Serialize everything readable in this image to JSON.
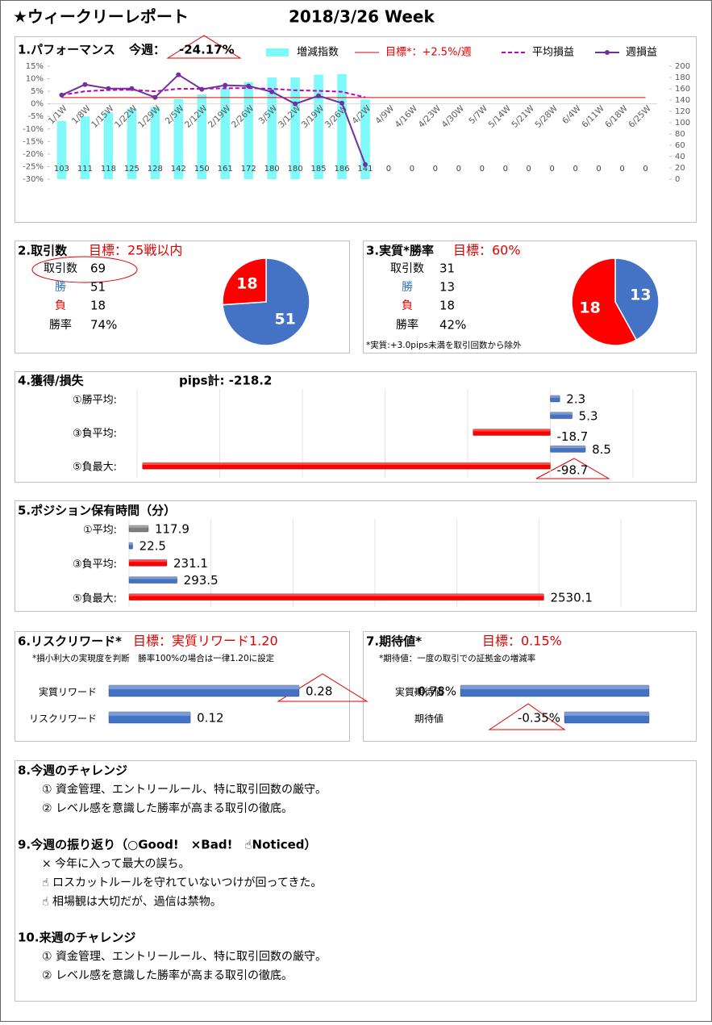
{
  "title": "★ウィークリーレポート",
  "week": "2018/3/26 Week",
  "chart_data": [
    {
      "type": "combo",
      "title": "1.パフォーマンス",
      "subtitle": "今週：",
      "annotation": "-24.17%",
      "categories": [
        "1/1W",
        "1/8W",
        "1/15W",
        "1/22W",
        "1/29W",
        "2/5W",
        "2/12W",
        "2/19W",
        "2/26W",
        "3/5W",
        "3/12W",
        "3/19W",
        "3/26W",
        "4/2W",
        "4/9W",
        "4/16W",
        "4/23W",
        "4/30W",
        "5/7W",
        "5/14W",
        "5/21W",
        "5/28W",
        "6/4W",
        "6/11W",
        "6/18W",
        "6/25W"
      ],
      "series": [
        {
          "name": "増減指数",
          "type": "bar",
          "axis": "y2",
          "color": "#7ff9f9",
          "values": [
            103,
            111,
            118,
            125,
            128,
            142,
            150,
            161,
            172,
            180,
            180,
            185,
            186,
            141,
            0,
            0,
            0,
            0,
            0,
            0,
            0,
            0,
            0,
            0,
            0,
            0
          ]
        },
        {
          "name": "目標*：+2.5%/週",
          "type": "line",
          "color": "#e00000",
          "style": "solid",
          "values": [
            2.5,
            2.5,
            2.5,
            2.5,
            2.5,
            2.5,
            2.5,
            2.5,
            2.5,
            2.5,
            2.5,
            2.5,
            2.5,
            2.5,
            2.5,
            2.5,
            2.5,
            2.5,
            2.5,
            2.5,
            2.5,
            2.5,
            2.5,
            2.5,
            2.5,
            2.5
          ]
        },
        {
          "name": "平均損益",
          "type": "line",
          "color": "#c000c0",
          "style": "dashed",
          "values": [
            3.5,
            5.0,
            5.5,
            5.6,
            5.0,
            6.0,
            6.0,
            6.2,
            6.3,
            6.0,
            5.4,
            5.2,
            4.8,
            2.6,
            null,
            null,
            null,
            null,
            null,
            null,
            null,
            null,
            null,
            null,
            null,
            null
          ]
        },
        {
          "name": "週損益",
          "type": "line",
          "color": "#7030a0",
          "style": "marker",
          "values": [
            3.5,
            7.7,
            6.1,
            6.1,
            2.6,
            11.6,
            5.8,
            7.4,
            7.1,
            4.8,
            0.0,
            3.2,
            0.3,
            -24.17,
            null,
            null,
            null,
            null,
            null,
            null,
            null,
            null,
            null,
            null,
            null,
            null
          ]
        }
      ],
      "ylim": [
        -30,
        15
      ],
      "yticks": [
        {
          "value": 15,
          "label": "15%"
        },
        {
          "value": 10,
          "label": "10%"
        },
        {
          "value": 5,
          "label": "5%"
        },
        {
          "value": 0,
          "label": "0%"
        },
        {
          "value": -5,
          "label": "-5%"
        },
        {
          "value": -10,
          "label": "-10%"
        },
        {
          "value": -15,
          "label": "-15%"
        },
        {
          "value": -20,
          "label": "-20%"
        },
        {
          "value": -25,
          "label": "-25%"
        },
        {
          "value": -30,
          "label": "-30%"
        }
      ],
      "y2lim": [
        0,
        200
      ],
      "y2ticks": [
        200,
        180,
        160,
        140,
        120,
        100,
        80,
        60,
        40,
        20,
        0
      ]
    },
    {
      "type": "pie",
      "title": "2.取引数",
      "target": "目標：25戦以内",
      "table": [
        [
          "取引数",
          "69"
        ],
        [
          "勝",
          "51"
        ],
        [
          "負",
          "18"
        ],
        [
          "勝率",
          "74%"
        ]
      ],
      "values": [
        51,
        18
      ],
      "colors": [
        "#4472c4",
        "#ff0000"
      ]
    },
    {
      "type": "pie",
      "title": "3.実質*勝率",
      "target": "目標：60%",
      "note": "*実質:+3.0pips未満を取引回数から除外",
      "table": [
        [
          "取引数",
          "31"
        ],
        [
          "勝",
          "13"
        ],
        [
          "負",
          "18"
        ],
        [
          "勝率",
          "42%"
        ]
      ],
      "values": [
        13,
        18
      ],
      "colors": [
        "#4472c4",
        "#ff0000"
      ]
    },
    {
      "type": "hbar",
      "title": "4.獲得/損失",
      "subtitle": "pips計: -218.2",
      "categories": [
        "①勝平均:",
        null,
        "③負平均:",
        null,
        "⑤負最大:"
      ],
      "values": [
        2.3,
        5.3,
        -18.7,
        8.5,
        -98.7
      ],
      "colors": [
        "#4472c4",
        "#4472c4",
        "#ff0000",
        "#4472c4",
        "#ff0000"
      ],
      "xlim": [
        -100,
        20
      ],
      "xticks": [
        -100,
        -80,
        -60,
        -40,
        -20,
        0,
        20
      ]
    },
    {
      "type": "hbar",
      "title": "5.ポジション保有時間（分）",
      "categories": [
        "①平均:",
        null,
        "③負平均:",
        null,
        "⑤負最大:"
      ],
      "values": [
        117.9,
        22.5,
        231.1,
        293.5,
        2530.1
      ],
      "colors": [
        "#7f7f7f",
        "#4472c4",
        "#ff0000",
        "#4472c4",
        "#ff0000"
      ],
      "xlim": [
        0,
        3000
      ],
      "xticks": [
        0,
        500,
        1000,
        1500,
        2000,
        2500,
        3000
      ]
    },
    {
      "type": "hbar",
      "title": "6.リスクリワード*",
      "target": "目標：実質リワード1.20",
      "note": "*損小利大の実現度を判断　勝率100%の場合は一律1.20に設定",
      "categories": [
        "実質リワード",
        "リスクリワード"
      ],
      "values": [
        0.28,
        0.12
      ],
      "colors": [
        "#4472c4",
        "#4472c4"
      ],
      "xlim": [
        0,
        0.35
      ]
    },
    {
      "type": "hbar",
      "title": "7.期待値*",
      "target": "目標：0.15%",
      "note": "*期待値：一度の取引での証拠金の増減率",
      "categories": [
        "実質期待値",
        "期待値"
      ],
      "values": [
        -0.78,
        -0.35
      ],
      "value_labels": [
        "-0.78%",
        "-0.35%"
      ],
      "colors": [
        "#4472c4",
        "#4472c4"
      ],
      "xlim": [
        -0.8,
        0
      ]
    }
  ],
  "sections": [
    {
      "title": "8.今週のチャレンジ",
      "items": [
        "①  資金管理、エントリールール、特に取引回数の厳守。",
        "②  レベル感を意識した勝率が高まる取引の徹底。"
      ]
    },
    {
      "title": "9.今週の振り返り（○Good!　×Bad!　☝Noticed）",
      "items": [
        "×   今年に入って最大の誤ち。",
        "☝  ロスカットルールを守れていないつけが回ってきた。",
        "☝  相場観は大切だが、過信は禁物。"
      ]
    },
    {
      "title": "10.来週のチャレンジ",
      "items": [
        "①  資金管理、エントリールール、特に取引回数の厳守。",
        "②  レベル感を意識した勝率が高まる取引の徹底。"
      ]
    }
  ]
}
